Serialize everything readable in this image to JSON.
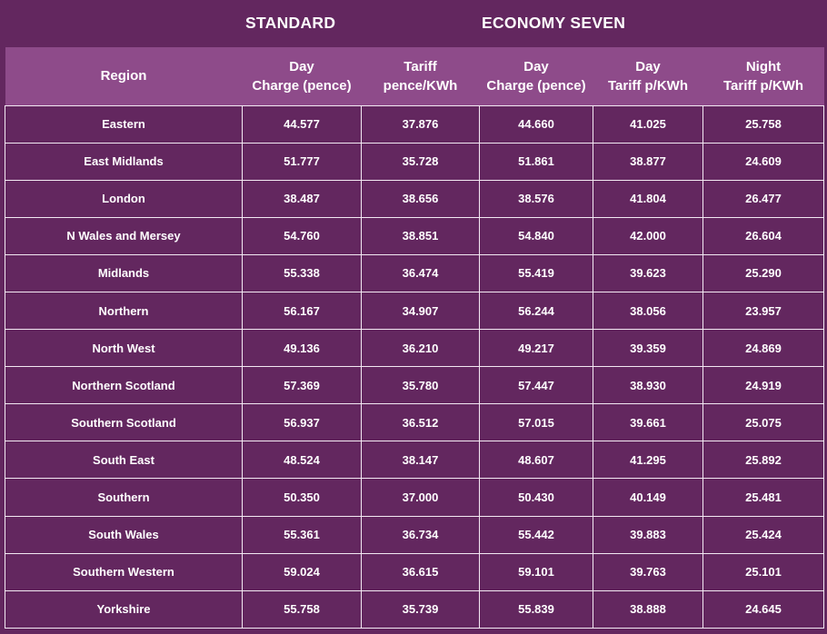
{
  "group_headers": {
    "standard": "STANDARD",
    "economy_seven": "ECONOMY SEVEN"
  },
  "columns": [
    {
      "line1": "Region",
      "line2": ""
    },
    {
      "line1": "Day",
      "line2": "Charge (pence)"
    },
    {
      "line1": "Tariff",
      "line2": "pence/KWh"
    },
    {
      "line1": "Day",
      "line2": "Charge (pence)"
    },
    {
      "line1": "Day",
      "line2": "Tariff p/KWh"
    },
    {
      "line1": "Night",
      "line2": "Tariff p/KWh"
    }
  ],
  "rows": [
    [
      "Eastern",
      "44.577",
      "37.876",
      "44.660",
      "41.025",
      "25.758"
    ],
    [
      "East Midlands",
      "51.777",
      "35.728",
      "51.861",
      "38.877",
      "24.609"
    ],
    [
      "London",
      "38.487",
      "38.656",
      "38.576",
      "41.804",
      "26.477"
    ],
    [
      "N Wales and Mersey",
      "54.760",
      "38.851",
      "54.840",
      "42.000",
      "26.604"
    ],
    [
      "Midlands",
      "55.338",
      "36.474",
      "55.419",
      "39.623",
      "25.290"
    ],
    [
      "Northern",
      "56.167",
      "34.907",
      "56.244",
      "38.056",
      "23.957"
    ],
    [
      "North West",
      "49.136",
      "36.210",
      "49.217",
      "39.359",
      "24.869"
    ],
    [
      "Northern Scotland",
      "57.369",
      "35.780",
      "57.447",
      "38.930",
      "24.919"
    ],
    [
      "Southern Scotland",
      "56.937",
      "36.512",
      "57.015",
      "39.661",
      "25.075"
    ],
    [
      "South East",
      "48.524",
      "38.147",
      "48.607",
      "41.295",
      "25.892"
    ],
    [
      "Southern",
      "50.350",
      "37.000",
      "50.430",
      "40.149",
      "25.481"
    ],
    [
      "South Wales",
      "55.361",
      "36.734",
      "55.442",
      "39.883",
      "25.424"
    ],
    [
      "Southern Western",
      "59.024",
      "36.615",
      "59.101",
      "39.763",
      "25.101"
    ],
    [
      "Yorkshire",
      "55.758",
      "35.739",
      "55.839",
      "38.888",
      "24.645"
    ]
  ],
  "colors": {
    "background": "#63275f",
    "header_band": "#8e4b8a",
    "grid_lines": "#f3e9f3",
    "text": "#ffffff"
  }
}
